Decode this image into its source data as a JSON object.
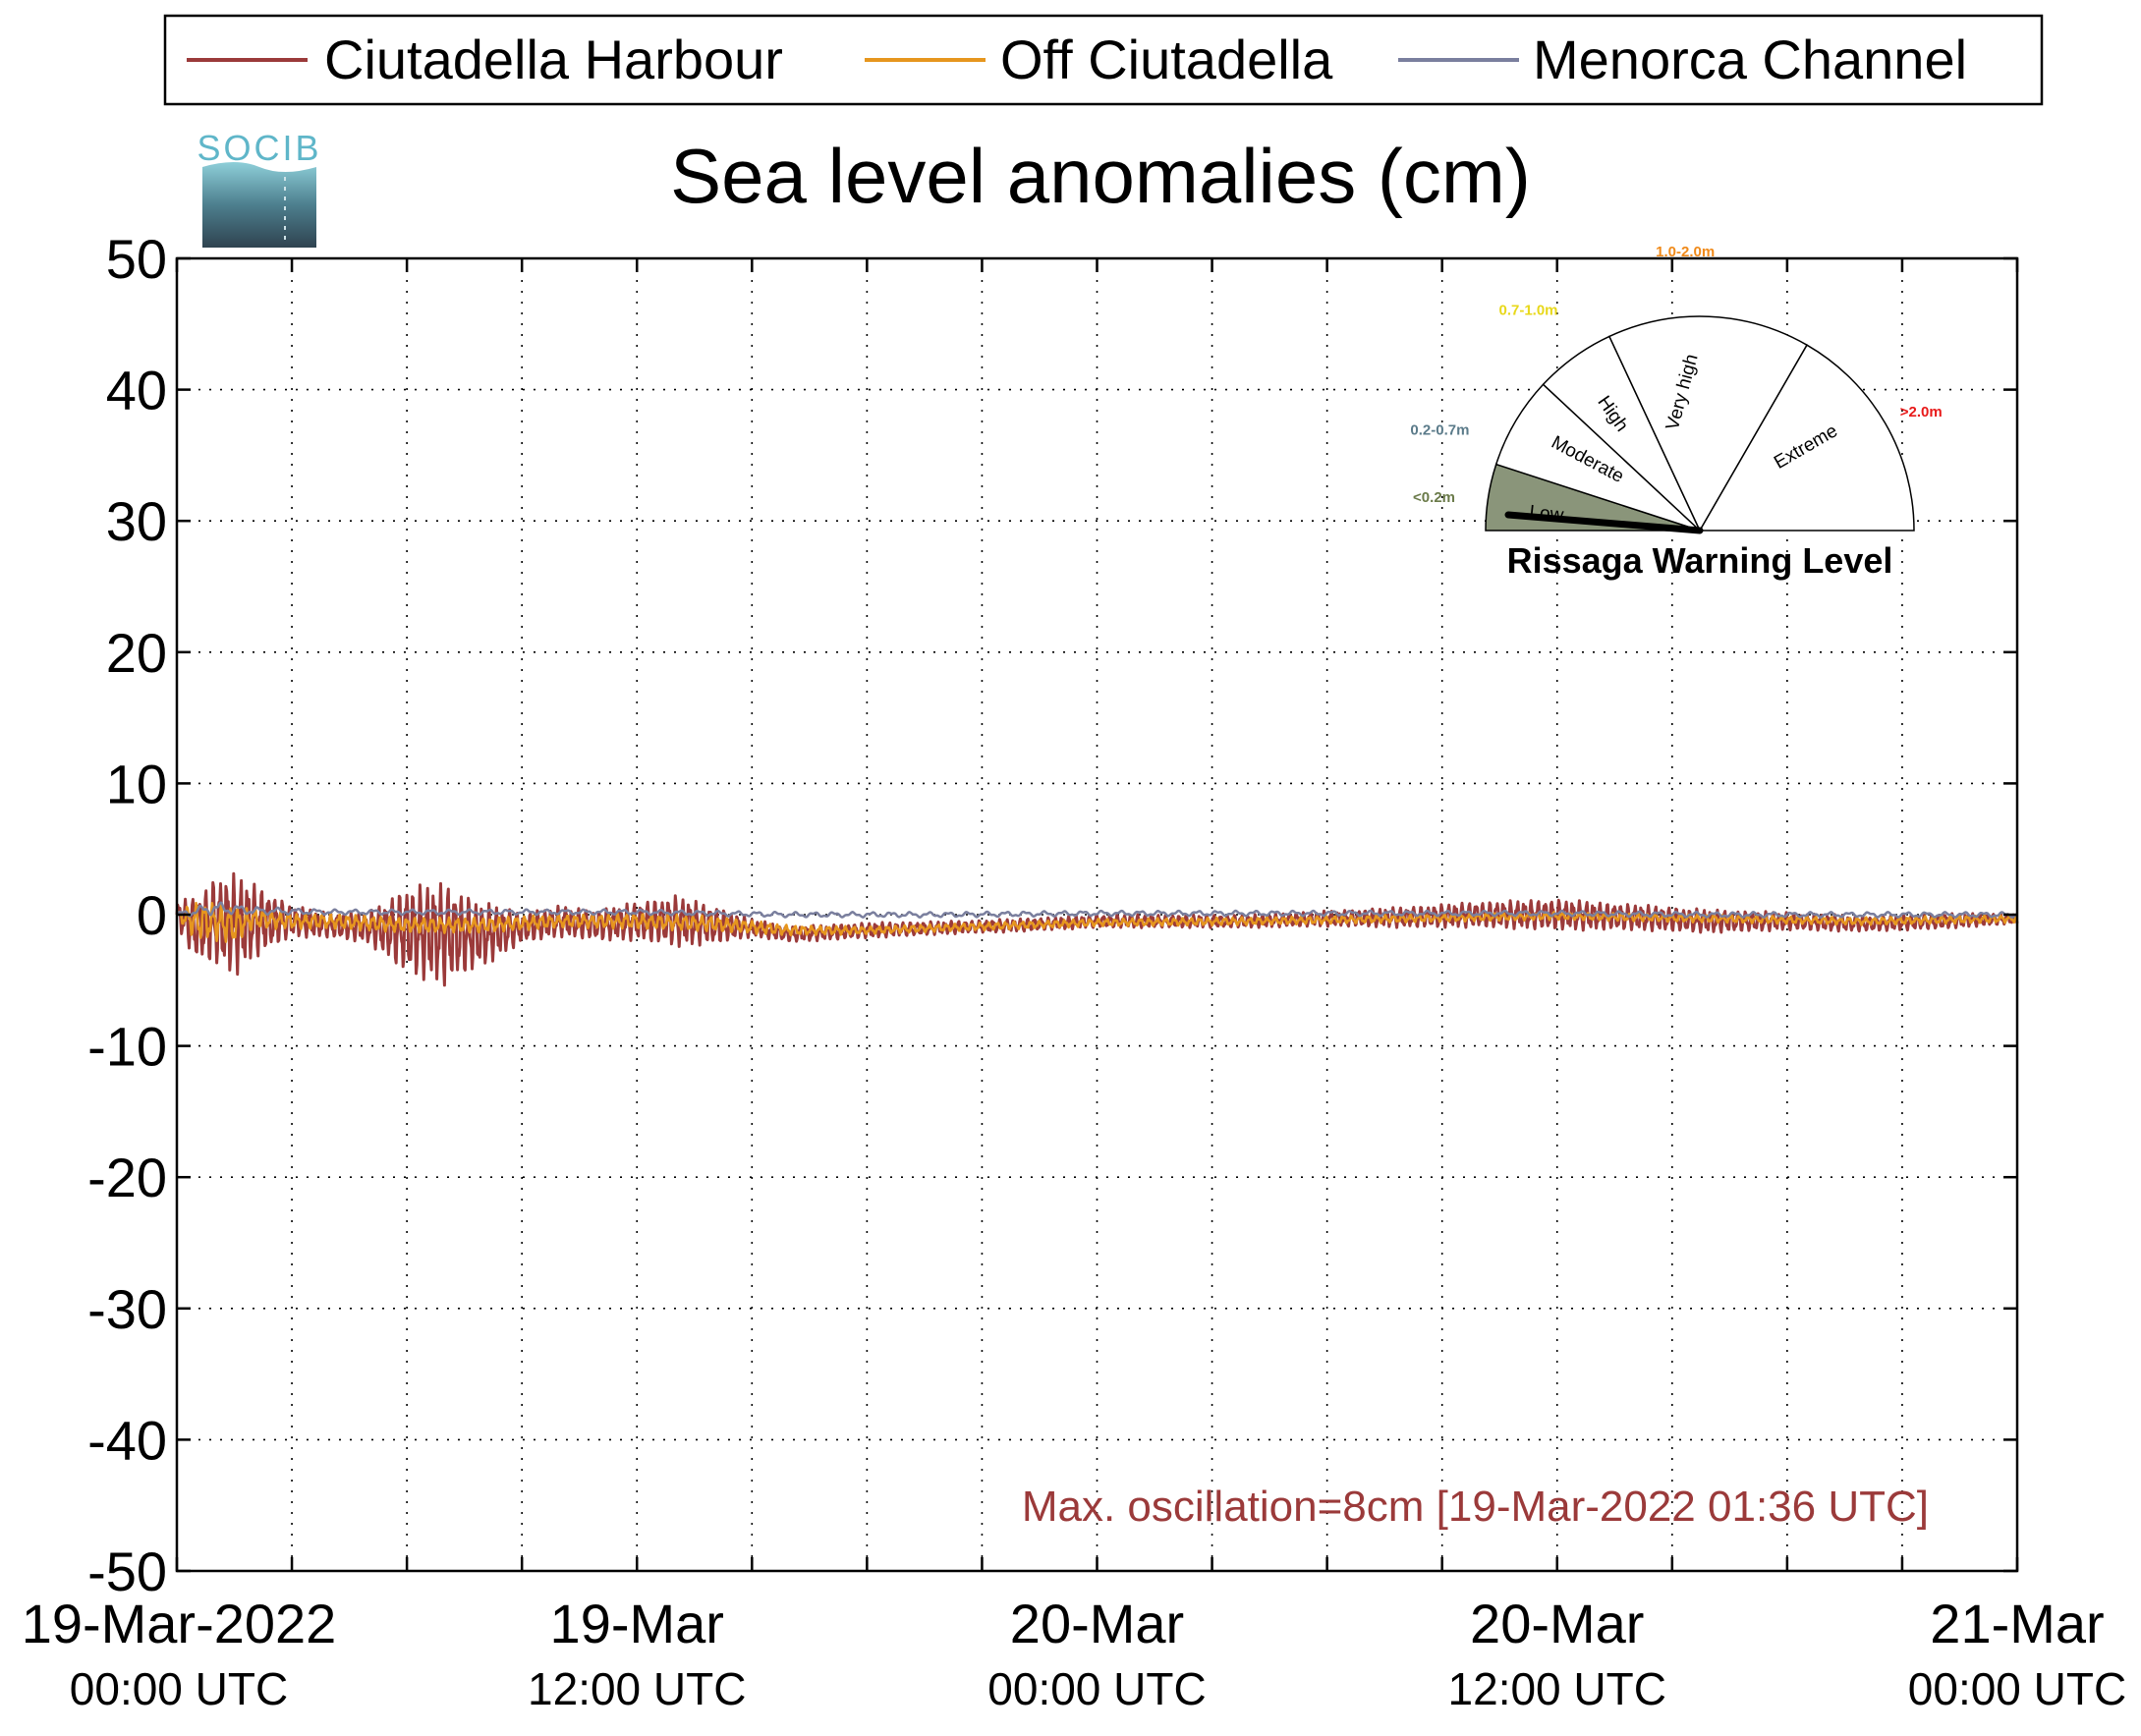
{
  "logo": {
    "text": "SOCIB"
  },
  "chart_data": {
    "type": "line",
    "title": "Sea level anomalies (cm)",
    "xlabel": "",
    "ylabel": "",
    "ylim": [
      -50,
      50
    ],
    "yticks": [
      50,
      40,
      30,
      20,
      10,
      0,
      -10,
      -20,
      -30,
      -40,
      -50
    ],
    "xlim_hours": [
      0,
      48
    ],
    "xticks": [
      {
        "hour": 0,
        "date": "19-Mar-2022",
        "time": "00:00 UTC"
      },
      {
        "hour": 12,
        "date": "19-Mar",
        "time": "12:00 UTC"
      },
      {
        "hour": 24,
        "date": "20-Mar",
        "time": "00:00 UTC"
      },
      {
        "hour": 36,
        "date": "20-Mar",
        "time": "12:00 UTC"
      },
      {
        "hour": 48,
        "date": "21-Mar",
        "time": "00:00 UTC"
      }
    ],
    "minor_tick_hours": [
      3,
      6,
      9,
      15,
      18,
      21,
      27,
      30,
      33,
      39,
      42,
      45
    ],
    "grid": true,
    "legend_position": "top",
    "series": [
      {
        "name": "Ciutadella Harbour",
        "color": "#9b3a3a",
        "envelope": {
          "hours": [
            0,
            0.5,
            1,
            1.5,
            2,
            3,
            4,
            5,
            6,
            7,
            8,
            9,
            10,
            11,
            12,
            13,
            14,
            15,
            16,
            18,
            20,
            22,
            24,
            26,
            28,
            30,
            32,
            34,
            36,
            38,
            40,
            42,
            44,
            46,
            48
          ],
          "center": [
            0,
            -1,
            -0.5,
            -0.8,
            -0.5,
            -0.5,
            -0.8,
            -1.0,
            -1.2,
            -1.5,
            -1.5,
            -1.0,
            -0.5,
            -0.8,
            -0.5,
            -0.5,
            -0.8,
            -1.0,
            -1.5,
            -1.2,
            -1.0,
            -0.8,
            -0.5,
            -0.5,
            -0.5,
            -0.3,
            -0.2,
            0.0,
            0.0,
            -0.2,
            -0.5,
            -0.5,
            -0.7,
            -0.5,
            -0.3
          ],
          "amplitude": [
            1,
            2.5,
            3.5,
            4,
            3,
            1.2,
            1.0,
            1.2,
            3.5,
            4.0,
            2.5,
            1.2,
            1.2,
            1.2,
            1.5,
            2.0,
            1.5,
            0.7,
            0.6,
            0.6,
            0.5,
            0.5,
            0.5,
            0.5,
            0.5,
            0.6,
            0.8,
            1.0,
            1.2,
            1.0,
            0.9,
            0.7,
            0.6,
            0.6,
            0.4
          ]
        }
      },
      {
        "name": "Off Ciutadella",
        "color": "#e6961e",
        "envelope": {
          "hours": [
            0,
            0.5,
            1,
            1.5,
            2,
            3,
            4,
            6,
            8,
            10,
            12,
            14,
            16,
            18,
            20,
            22,
            24,
            28,
            32,
            36,
            40,
            44,
            48
          ],
          "center": [
            0,
            -0.5,
            -0.5,
            -0.8,
            -0.3,
            -0.5,
            -0.5,
            -0.8,
            -0.8,
            -0.5,
            -0.5,
            -0.7,
            -1.2,
            -1.2,
            -1.0,
            -0.8,
            -0.6,
            -0.5,
            -0.3,
            -0.1,
            -0.3,
            -0.5,
            -0.3
          ],
          "amplitude": [
            0.3,
            1.5,
            1.5,
            1.5,
            0.8,
            0.6,
            0.6,
            0.6,
            0.6,
            0.5,
            0.6,
            0.6,
            0.4,
            0.3,
            0.3,
            0.3,
            0.3,
            0.3,
            0.3,
            0.3,
            0.3,
            0.3,
            0.3
          ]
        }
      },
      {
        "name": "Menorca Channel",
        "color": "#7a7f9e",
        "envelope": {
          "hours": [
            0,
            1,
            2,
            4,
            8,
            12,
            16,
            20,
            24,
            28,
            32,
            36,
            40,
            44,
            48
          ],
          "center": [
            0,
            0.5,
            0.3,
            0.2,
            0.2,
            0.2,
            0.0,
            0.0,
            0.1,
            0.1,
            0.1,
            0.1,
            0.0,
            0.0,
            0.0
          ],
          "amplitude": [
            0.2,
            0.5,
            0.3,
            0.2,
            0.2,
            0.2,
            0.2,
            0.2,
            0.2,
            0.2,
            0.2,
            0.2,
            0.2,
            0.2,
            0.2
          ]
        }
      }
    ],
    "annotation": {
      "text": "Max. oscillation=8cm [19-Mar-2022 01:36 UTC]",
      "color": "#9b3a3a"
    }
  },
  "gauge": {
    "title": "Rissaga Warning Level",
    "needle_value": "Low",
    "sectors": [
      {
        "label": "Low",
        "range": "<0.2m",
        "range_color": "#6b7b4a",
        "fill": "#8a957a"
      },
      {
        "label": "Moderate",
        "range": "0.2-0.7m",
        "range_color": "#5b7b8a",
        "fill": "#ffffff"
      },
      {
        "label": "High",
        "range": "0.7-1.0m",
        "range_color": "#e8d81a",
        "fill": "#ffffff"
      },
      {
        "label": "Very high",
        "range": "1.0-2.0m",
        "range_color": "#f08a1a",
        "fill": "#ffffff"
      },
      {
        "label": "Extreme",
        "range": ">2.0m",
        "range_color": "#e81a1a",
        "fill": "#ffffff"
      }
    ]
  }
}
